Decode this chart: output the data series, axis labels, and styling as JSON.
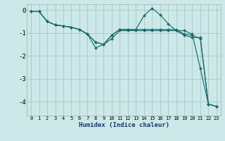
{
  "xlabel": "Humidex (Indice chaleur)",
  "bg_color": "#cce8e8",
  "grid_color": "#aacccc",
  "line_color": "#1a6b6b",
  "marker": "D",
  "marker_size": 2.0,
  "xlim": [
    -0.5,
    23.5
  ],
  "ylim": [
    -4.6,
    0.25
  ],
  "yticks": [
    0,
    -1,
    -2,
    -3,
    -4
  ],
  "xtick_labels": [
    "0",
    "1",
    "2",
    "3",
    "4",
    "5",
    "6",
    "7",
    "8",
    "9",
    "10",
    "11",
    "12",
    "13",
    "14",
    "15",
    "16",
    "17",
    "18",
    "19",
    "20",
    "21",
    "22",
    "23"
  ],
  "series": [
    [
      null,
      -0.07,
      null,
      null,
      null,
      null,
      null,
      null,
      null,
      null,
      null,
      null,
      null,
      null,
      null,
      null,
      null,
      null,
      null,
      null,
      null,
      null,
      null,
      null
    ],
    [
      -0.07,
      -0.07,
      -0.5,
      -0.65,
      -0.7,
      -0.75,
      -0.85,
      -1.05,
      -1.65,
      -1.5,
      -1.25,
      -0.9,
      -0.9,
      -0.9,
      -0.9,
      -0.9,
      -0.9,
      -0.9,
      -0.9,
      -0.9,
      -1.05,
      -2.55,
      -4.1,
      -4.2
    ],
    [
      -0.07,
      -0.07,
      -0.5,
      -0.65,
      -0.7,
      -0.75,
      -0.85,
      -1.05,
      -1.4,
      -1.5,
      -1.1,
      -0.85,
      -0.85,
      -0.85,
      -0.25,
      0.07,
      -0.2,
      -0.6,
      -0.9,
      -1.1,
      -1.2,
      -1.2,
      -4.1,
      -4.2
    ],
    [
      -0.07,
      -0.07,
      -0.5,
      -0.65,
      -0.7,
      -0.75,
      -0.85,
      -1.05,
      -1.4,
      -1.5,
      -1.1,
      -0.85,
      -0.85,
      -0.85,
      -0.85,
      -0.85,
      -0.85,
      -0.85,
      -0.85,
      -1.05,
      -1.1,
      -1.25,
      -4.1,
      -4.2
    ]
  ]
}
